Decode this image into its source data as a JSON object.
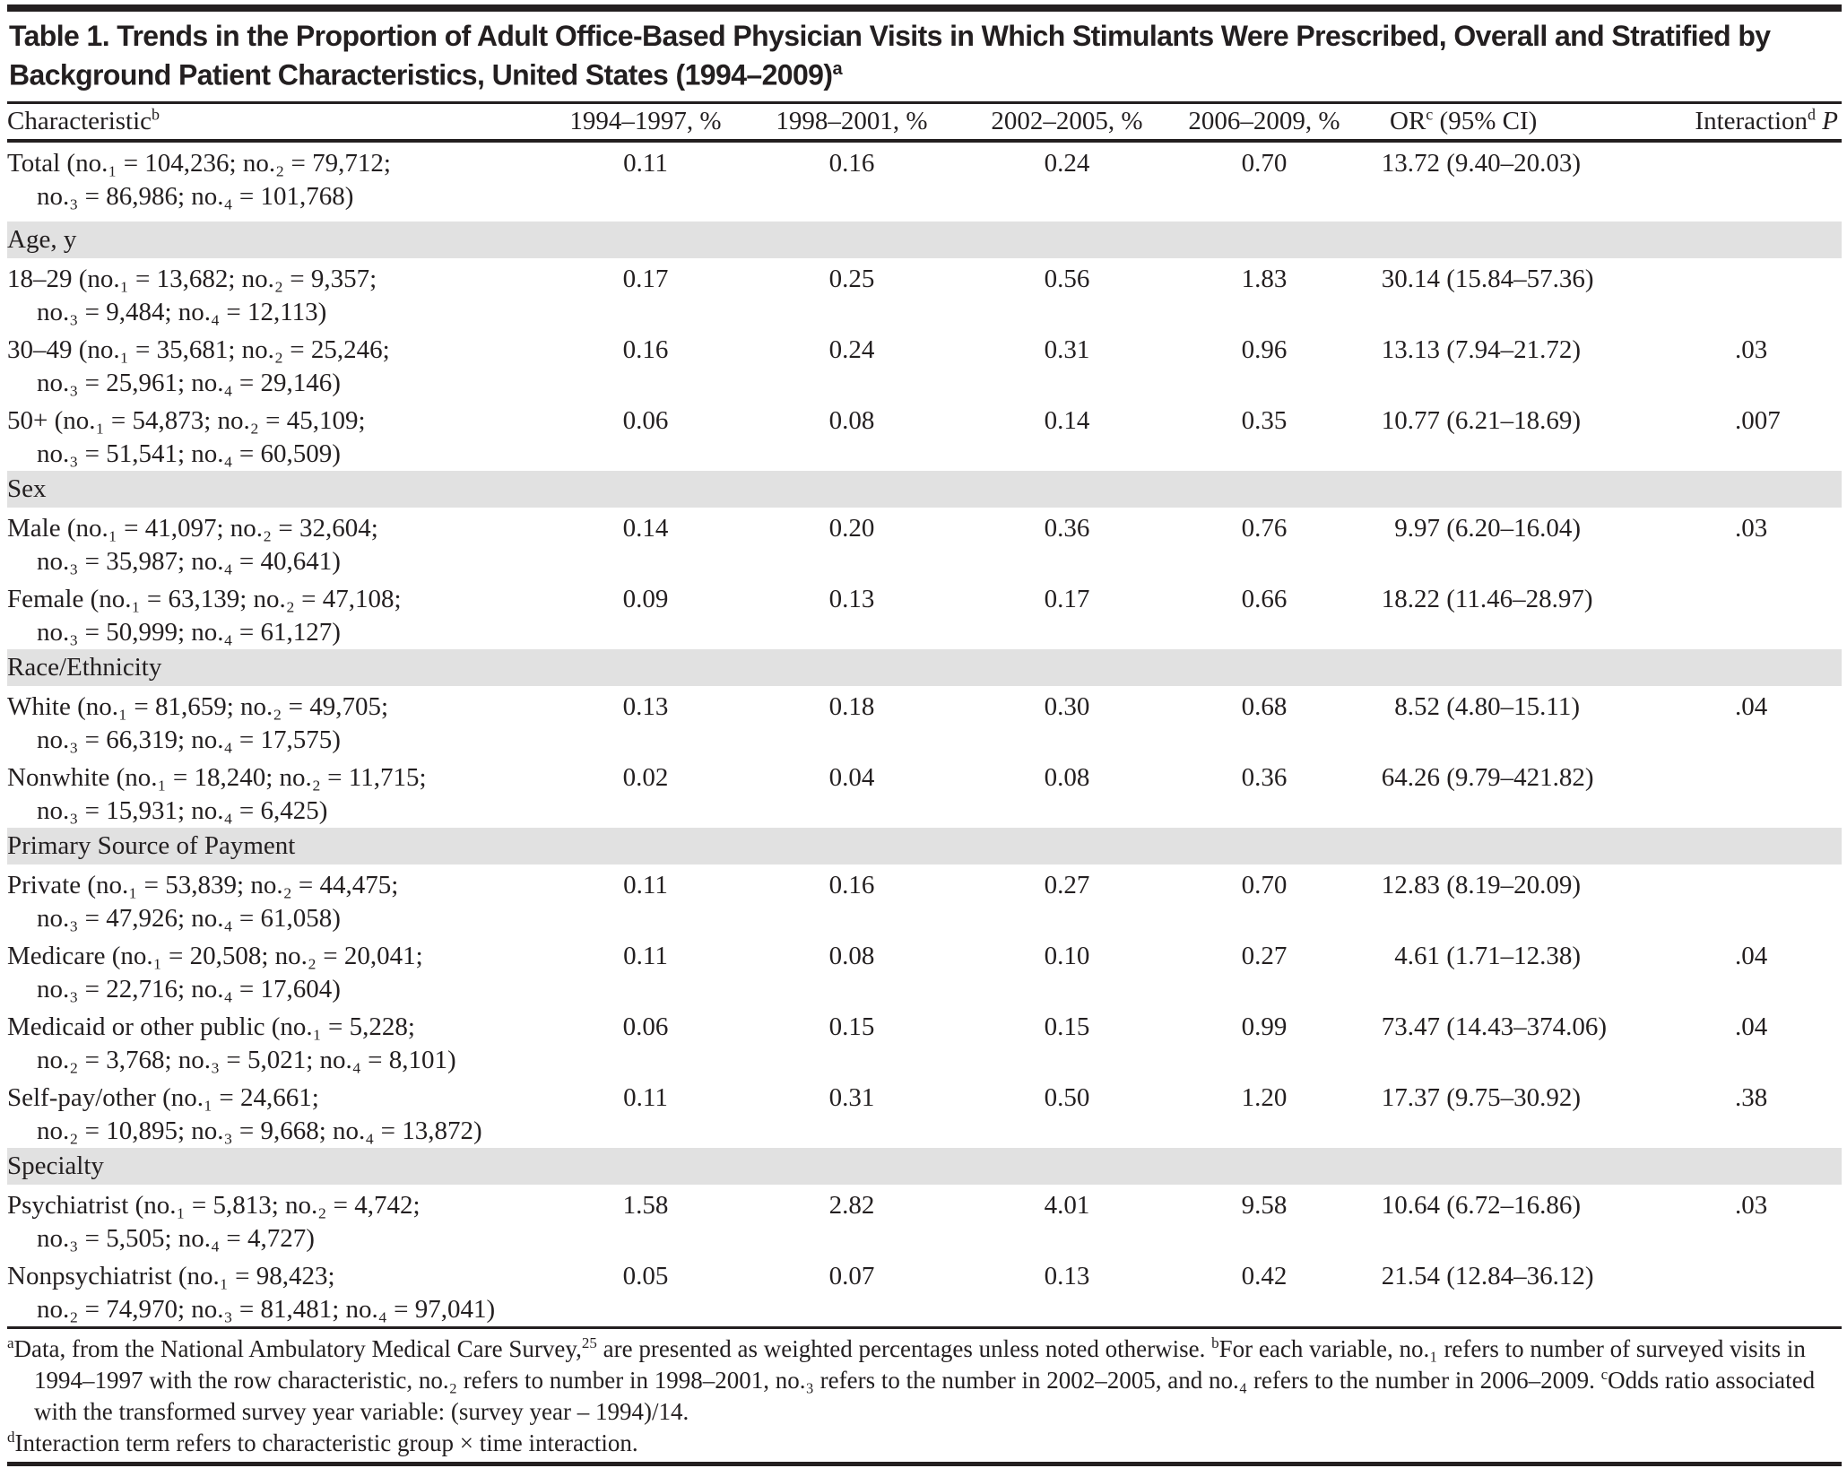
{
  "title": {
    "text": "Table 1. Trends in the Proportion of Adult Office-Based Physician Visits in Which Stimulants Were Prescribed, Overall and Stratified by Background Patient Characteristics, United States (1994–2009)",
    "mark": "a"
  },
  "headers": {
    "characteristic": "Characteristic",
    "characteristic_mark": "b",
    "p1": "1994–1997, %",
    "p2": "1998–2001, %",
    "p3": "2002–2005, %",
    "p4": "2006–2009, %",
    "or": "OR",
    "or_mark": "c",
    "or_rest": " (95% CI)",
    "interaction": "Interaction",
    "interaction_mark": "d",
    "interaction_p": "P"
  },
  "total": {
    "label1": "Total (no.₁ = 104,236; no.₂ = 79,712;",
    "label2": "no.₃ = 86,986; no.₄ = 101,768)",
    "values": [
      "0.11",
      "0.16",
      "0.24",
      "0.70"
    ],
    "or_est": "13.72",
    "or_ci": "(9.40–20.03)",
    "p": ""
  },
  "sections": [
    {
      "title": "Age, y",
      "rows": [
        {
          "label1": "18–29 (no.₁ = 13,682; no.₂ = 9,357;",
          "label2": "no.₃ = 9,484; no.₄ = 12,113)",
          "values": [
            "0.17",
            "0.25",
            "0.56",
            "1.83"
          ],
          "or_est": "30.14",
          "or_ci": "(15.84–57.36)",
          "p": ""
        },
        {
          "label1": "30–49 (no.₁ = 35,681; no.₂ = 25,246;",
          "label2": "no.₃ = 25,961; no.₄ = 29,146)",
          "values": [
            "0.16",
            "0.24",
            "0.31",
            "0.96"
          ],
          "or_est": "13.13",
          "or_ci": "(7.94–21.72)",
          "p": ".03"
        },
        {
          "label1": "50+ (no.₁ = 54,873; no.₂ = 45,109;",
          "label2": "no.₃ = 51,541; no.₄ = 60,509)",
          "values": [
            "0.06",
            "0.08",
            "0.14",
            "0.35"
          ],
          "or_est": "10.77",
          "or_ci": "(6.21–18.69)",
          "p": ".007"
        }
      ]
    },
    {
      "title": "Sex",
      "rows": [
        {
          "label1": "Male (no.₁ = 41,097; no.₂ = 32,604;",
          "label2": "no.₃ = 35,987; no.₄ = 40,641)",
          "values": [
            "0.14",
            "0.20",
            "0.36",
            "0.76"
          ],
          "or_est": "9.97",
          "or_ci": "(6.20–16.04)",
          "p": ".03"
        },
        {
          "label1": "Female (no.₁ = 63,139; no.₂ = 47,108;",
          "label2": "no.₃ = 50,999; no.₄ = 61,127)",
          "values": [
            "0.09",
            "0.13",
            "0.17",
            "0.66"
          ],
          "or_est": "18.22",
          "or_ci": "(11.46–28.97)",
          "p": ""
        }
      ]
    },
    {
      "title": "Race/Ethnicity",
      "rows": [
        {
          "label1": "White (no.₁ = 81,659; no.₂ = 49,705;",
          "label2": "no.₃ = 66,319; no.₄ = 17,575)",
          "values": [
            "0.13",
            "0.18",
            "0.30",
            "0.68"
          ],
          "or_est": "8.52",
          "or_ci": "(4.80–15.11)",
          "p": ".04"
        },
        {
          "label1": "Nonwhite (no.₁ = 18,240; no.₂ = 11,715;",
          "label2": "no.₃ = 15,931; no.₄ = 6,425)",
          "values": [
            "0.02",
            "0.04",
            "0.08",
            "0.36"
          ],
          "or_est": "64.26",
          "or_ci": "(9.79–421.82)",
          "p": ""
        }
      ]
    },
    {
      "title": "Primary Source of Payment",
      "rows": [
        {
          "label1": "Private (no.₁ = 53,839; no.₂ = 44,475;",
          "label2": "no.₃ = 47,926; no.₄ = 61,058)",
          "values": [
            "0.11",
            "0.16",
            "0.27",
            "0.70"
          ],
          "or_est": "12.83",
          "or_ci": "(8.19–20.09)",
          "p": ""
        },
        {
          "label1": "Medicare (no.₁ = 20,508; no.₂ = 20,041;",
          "label2": "no.₃ = 22,716; no.₄ = 17,604)",
          "values": [
            "0.11",
            "0.08",
            "0.10",
            "0.27"
          ],
          "or_est": "4.61",
          "or_ci": "(1.71–12.38)",
          "p": ".04"
        },
        {
          "label1": "Medicaid or other public (no.₁ = 5,228;",
          "label2": "no.₂ = 3,768; no.₃ = 5,021; no.₄ = 8,101)",
          "values": [
            "0.06",
            "0.15",
            "0.15",
            "0.99"
          ],
          "or_est": "73.47",
          "or_ci": "(14.43–374.06)",
          "p": ".04"
        },
        {
          "label1": "Self-pay/other (no.₁ = 24,661;",
          "label2": "no.₂ = 10,895; no.₃ = 9,668; no.₄ = 13,872)",
          "values": [
            "0.11",
            "0.31",
            "0.50",
            "1.20"
          ],
          "or_est": "17.37",
          "or_ci": "(9.75–30.92)",
          "p": ".38"
        }
      ]
    },
    {
      "title": "Specialty",
      "rows": [
        {
          "label1": "Psychiatrist (no.₁ = 5,813; no.₂ = 4,742;",
          "label2": "no.₃ = 5,505; no.₄ = 4,727)",
          "values": [
            "1.58",
            "2.82",
            "4.01",
            "9.58"
          ],
          "or_est": "10.64",
          "or_ci": "(6.72–16.86)",
          "p": ".03"
        },
        {
          "label1": "Nonpsychiatrist (no.₁ = 98,423;",
          "label2": "no.₂ = 74,970; no.₃ = 81,481; no.₄ = 97,041)",
          "values": [
            "0.05",
            "0.07",
            "0.13",
            "0.42"
          ],
          "or_est": "21.54",
          "or_ci": "(12.84–36.12)",
          "p": ""
        }
      ]
    }
  ],
  "footnotes": {
    "a_mark": "a",
    "a_text1": "Data, from the National Ambulatory Medical Care Survey,",
    "a_ref": "25",
    "a_text2": " are presented as weighted percentages unless noted otherwise. ",
    "b_mark": "b",
    "b_text": "For each variable, no.₁ refers to number of surveyed visits in 1994–1997 with the row characteristic, no.₂ refers to number in 1998–2001, no.₃ refers to the number in 2002–2005, and no.₄ refers to the number in 2006–2009. ",
    "c_mark": "c",
    "c_text": "Odds ratio associated with the transformed survey year variable: (survey year – 1994)/14.",
    "d_mark": "d",
    "d_text": "Interaction term refers to characteristic group × time interaction."
  }
}
